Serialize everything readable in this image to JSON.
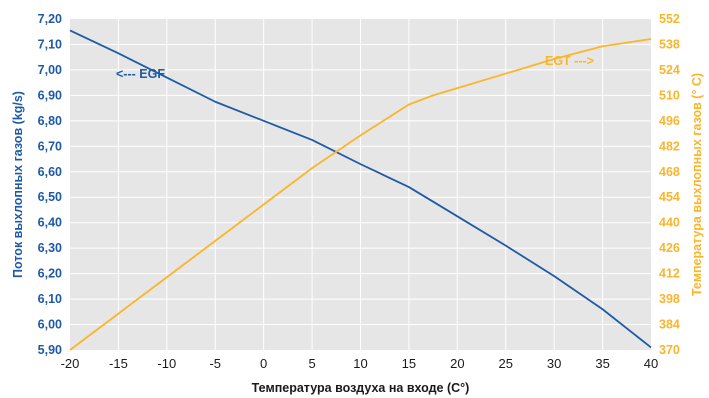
{
  "chart_data": {
    "type": "line",
    "title": "",
    "xlabel": "Температура воздуха на входе (С°)",
    "ylabel_left": "Поток выхлопных газов (kg/s)",
    "ylabel_right": "Температура выхлопных газов (° С)",
    "x_ticks": [
      "-20",
      "-15",
      "-10",
      "-5",
      "0",
      "5",
      "10",
      "15",
      "20",
      "25",
      "30",
      "35",
      "40"
    ],
    "y_left_ticks": [
      "7,20",
      "7,10",
      "7,00",
      "6,90",
      "6,80",
      "6,70",
      "6,60",
      "6,50",
      "6,40",
      "6,30",
      "6,20",
      "6,10",
      "6,00",
      "5,90"
    ],
    "y_right_ticks": [
      "552",
      "538",
      "524",
      "510",
      "496",
      "482",
      "468",
      "454",
      "440",
      "426",
      "412",
      "398",
      "384",
      "370"
    ],
    "xlim": [
      -20,
      40
    ],
    "ylim_left": [
      5.9,
      7.2
    ],
    "ylim_right": [
      370,
      552
    ],
    "grid": true,
    "colors": {
      "egf": "#1f5aa6",
      "egt": "#fbb52b",
      "plot_bg": "#e6e6e6",
      "grid": "#ffffff"
    },
    "series": [
      {
        "name": "EGF",
        "axis": "left",
        "x": [
          -20,
          -15,
          -10,
          -5,
          0,
          5,
          10,
          15,
          20,
          25,
          30,
          35,
          40
        ],
        "values": [
          7.155,
          7.065,
          6.97,
          6.875,
          6.8,
          6.725,
          6.63,
          6.54,
          6.425,
          6.31,
          6.19,
          6.06,
          5.91
        ]
      },
      {
        "name": "EGT",
        "axis": "right",
        "x": [
          -20,
          -15,
          -10,
          -5,
          0,
          5,
          10,
          15,
          17.5,
          20,
          25,
          30,
          35,
          40
        ],
        "values": [
          370,
          390,
          410,
          430,
          450,
          470,
          488,
          505,
          510,
          514,
          522,
          530,
          537,
          541
        ]
      }
    ],
    "annotations": {
      "egf_label": "<--- EGF",
      "egt_label": "EGT --->"
    }
  }
}
